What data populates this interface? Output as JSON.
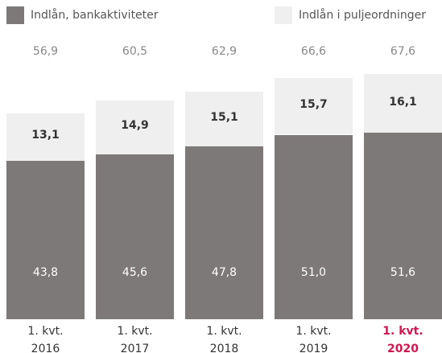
{
  "chart_data": {
    "type": "stacked_bar",
    "categories": [
      "1. kvt. 2016",
      "1. kvt. 2017",
      "1. kvt. 2018",
      "1. kvt. 2019",
      "1. kvt. 2020"
    ],
    "highlight_index": 4,
    "highlight_color": "#d0164f",
    "series": [
      {
        "name": "Indlån, bankaktiviteter",
        "color": "#7e7979",
        "label_color": "#ffffff",
        "values": [
          43.8,
          45.6,
          47.8,
          51.0,
          51.6
        ],
        "value_labels": [
          "43,8",
          "45,6",
          "47,8",
          "51,0",
          "51,6"
        ]
      },
      {
        "name": "Indlån i puljeordninger",
        "color": "#efefef",
        "label_color": "#333333",
        "values": [
          13.1,
          14.9,
          15.1,
          15.7,
          16.1
        ],
        "value_labels": [
          "13,1",
          "14,9",
          "15,1",
          "15,7",
          "16,1"
        ]
      }
    ],
    "total_labels": [
      "56,9",
      "60,5",
      "62,9",
      "66,6",
      "67,6"
    ],
    "ylim": [
      0,
      80
    ]
  }
}
